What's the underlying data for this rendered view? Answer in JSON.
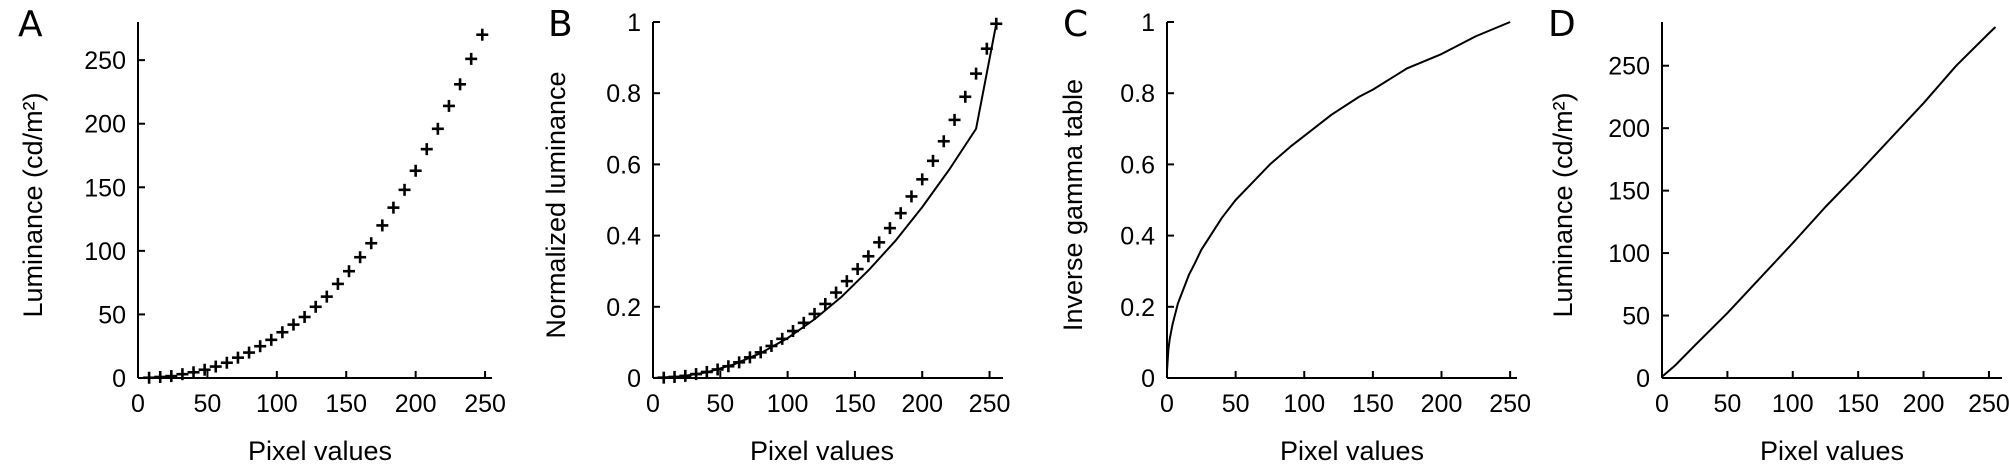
{
  "chart_data": [
    {
      "panel": "A",
      "type": "scatter",
      "xlabel": "Pixel values",
      "ylabel": "Luminance (cd/m²)",
      "xlim": [
        0,
        255
      ],
      "ylim": [
        0,
        280
      ],
      "xticks": [
        0,
        50,
        100,
        150,
        200,
        250
      ],
      "yticks": [
        0,
        50,
        100,
        150,
        200,
        250
      ],
      "grid": false,
      "x": [
        8,
        16,
        24,
        32,
        40,
        48,
        56,
        64,
        72,
        80,
        88,
        96,
        104,
        112,
        120,
        128,
        136,
        144,
        152,
        160,
        168,
        176,
        184,
        192,
        200,
        208,
        216,
        224,
        232,
        240,
        248
      ],
      "y": [
        0.2,
        0.8,
        1.5,
        3,
        4.5,
        6.5,
        9,
        12,
        16,
        20,
        25,
        30,
        36,
        42,
        48,
        56,
        64,
        74,
        84,
        95,
        106,
        120,
        134,
        148,
        163,
        180,
        196,
        214,
        231,
        251,
        270
      ]
    },
    {
      "panel": "B",
      "type": "scatter",
      "xlabel": "Pixel values",
      "ylabel": "Normalized luminance",
      "xlim": [
        0,
        260
      ],
      "ylim": [
        0,
        1
      ],
      "xticks": [
        0,
        50,
        100,
        150,
        200,
        250
      ],
      "yticks": [
        0,
        0.2,
        0.4,
        0.6,
        0.8,
        1
      ],
      "ytick_labels": [
        "0",
        "0.2",
        "0.4",
        "0.6",
        "0.8",
        "1"
      ],
      "grid": false,
      "x": [
        8,
        16,
        24,
        32,
        40,
        48,
        56,
        64,
        72,
        80,
        88,
        96,
        104,
        112,
        120,
        128,
        136,
        144,
        152,
        160,
        168,
        176,
        184,
        192,
        200,
        208,
        216,
        224,
        232,
        240,
        248,
        255
      ],
      "y": [
        0.001,
        0.003,
        0.006,
        0.011,
        0.017,
        0.024,
        0.033,
        0.044,
        0.058,
        0.072,
        0.09,
        0.11,
        0.132,
        0.155,
        0.18,
        0.208,
        0.24,
        0.272,
        0.306,
        0.342,
        0.381,
        0.421,
        0.463,
        0.51,
        0.558,
        0.61,
        0.665,
        0.725,
        0.79,
        0.855,
        0.925,
        0.995
      ],
      "fit_x": [
        0,
        20,
        40,
        60,
        80,
        100,
        120,
        140,
        160,
        180,
        200,
        220,
        240,
        255
      ],
      "fit_y": [
        0,
        0.004,
        0.016,
        0.038,
        0.07,
        0.112,
        0.165,
        0.228,
        0.302,
        0.385,
        0.48,
        0.585,
        0.7,
        0.995
      ]
    },
    {
      "panel": "C",
      "type": "line",
      "xlabel": "Pixel values",
      "ylabel": "Inverse gamma table",
      "xlim": [
        0,
        255
      ],
      "ylim": [
        0,
        1
      ],
      "xticks": [
        0,
        50,
        100,
        150,
        200,
        250
      ],
      "yticks": [
        0,
        0.2,
        0.4,
        0.6,
        0.8,
        1
      ],
      "ytick_labels": [
        "0",
        "0.2",
        "0.4",
        "0.6",
        "0.8",
        "1"
      ],
      "grid": false,
      "x": [
        0,
        1,
        2,
        4,
        6,
        8,
        12,
        16,
        20,
        25,
        30,
        40,
        50,
        60,
        75,
        90,
        100,
        120,
        140,
        150,
        175,
        200,
        225,
        250
      ],
      "y": [
        0.02,
        0.08,
        0.11,
        0.15,
        0.18,
        0.21,
        0.25,
        0.29,
        0.32,
        0.36,
        0.39,
        0.45,
        0.5,
        0.54,
        0.6,
        0.65,
        0.68,
        0.74,
        0.79,
        0.81,
        0.87,
        0.91,
        0.96,
        1.0
      ]
    },
    {
      "panel": "D",
      "type": "line",
      "xlabel": "Pixel values",
      "ylabel": "Luminance (cd/m²)",
      "xlim": [
        0,
        260
      ],
      "ylim": [
        0,
        285
      ],
      "xticks": [
        0,
        50,
        100,
        150,
        200,
        250
      ],
      "yticks": [
        0,
        50,
        100,
        150,
        200,
        250
      ],
      "grid": false,
      "x": [
        0,
        10,
        25,
        50,
        75,
        100,
        125,
        150,
        175,
        200,
        225,
        250,
        255
      ],
      "y": [
        1,
        10,
        26,
        52,
        80,
        108,
        137,
        164,
        192,
        220,
        250,
        276,
        281
      ]
    }
  ]
}
